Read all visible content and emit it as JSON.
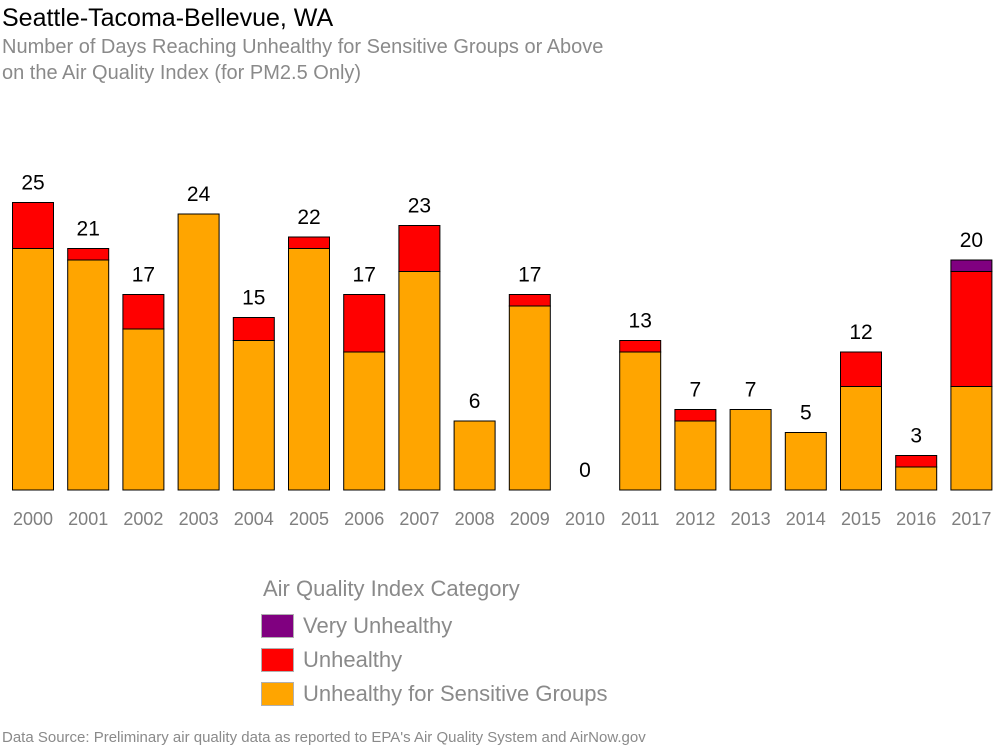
{
  "header": {
    "title": "Seattle-Tacoma-Bellevue, WA",
    "subtitle_line1": "Number of Days Reaching Unhealthy for Sensitive Groups or Above",
    "subtitle_line2": "on the Air Quality Index (for PM2.5 Only)"
  },
  "legend": {
    "title": "Air Quality Index Category",
    "items": [
      {
        "label": "Very Unhealthy",
        "color": "#800080"
      },
      {
        "label": "Unhealthy",
        "color": "#ff0000"
      },
      {
        "label": "Unhealthy for Sensitive Groups",
        "color": "#ffa500"
      }
    ]
  },
  "source": "Data Source: Preliminary air quality data as reported to EPA's Air Quality System and AirNow.gov",
  "chart_data": {
    "type": "bar",
    "stacked": true,
    "categories": [
      "2000",
      "2001",
      "2002",
      "2003",
      "2004",
      "2005",
      "2006",
      "2007",
      "2008",
      "2009",
      "2010",
      "2011",
      "2012",
      "2013",
      "2014",
      "2015",
      "2016",
      "2017"
    ],
    "series": [
      {
        "name": "Unhealthy for Sensitive Groups",
        "color": "#ffa500",
        "values": [
          21,
          20,
          14,
          24,
          13,
          21,
          12,
          19,
          6,
          16,
          0,
          12,
          6,
          7,
          5,
          9,
          2,
          9
        ]
      },
      {
        "name": "Unhealthy",
        "color": "#ff0000",
        "values": [
          4,
          1,
          3,
          0,
          2,
          1,
          5,
          4,
          0,
          1,
          0,
          1,
          1,
          0,
          0,
          3,
          1,
          10
        ]
      },
      {
        "name": "Very Unhealthy",
        "color": "#800080",
        "values": [
          0,
          0,
          0,
          0,
          0,
          0,
          0,
          0,
          0,
          0,
          0,
          0,
          0,
          0,
          0,
          0,
          0,
          1
        ]
      }
    ],
    "totals": [
      25,
      21,
      17,
      24,
      15,
      22,
      17,
      23,
      6,
      17,
      0,
      13,
      7,
      7,
      5,
      12,
      3,
      20
    ],
    "ylim": [
      0,
      25
    ],
    "grid": false,
    "legend_position": "bottom"
  }
}
